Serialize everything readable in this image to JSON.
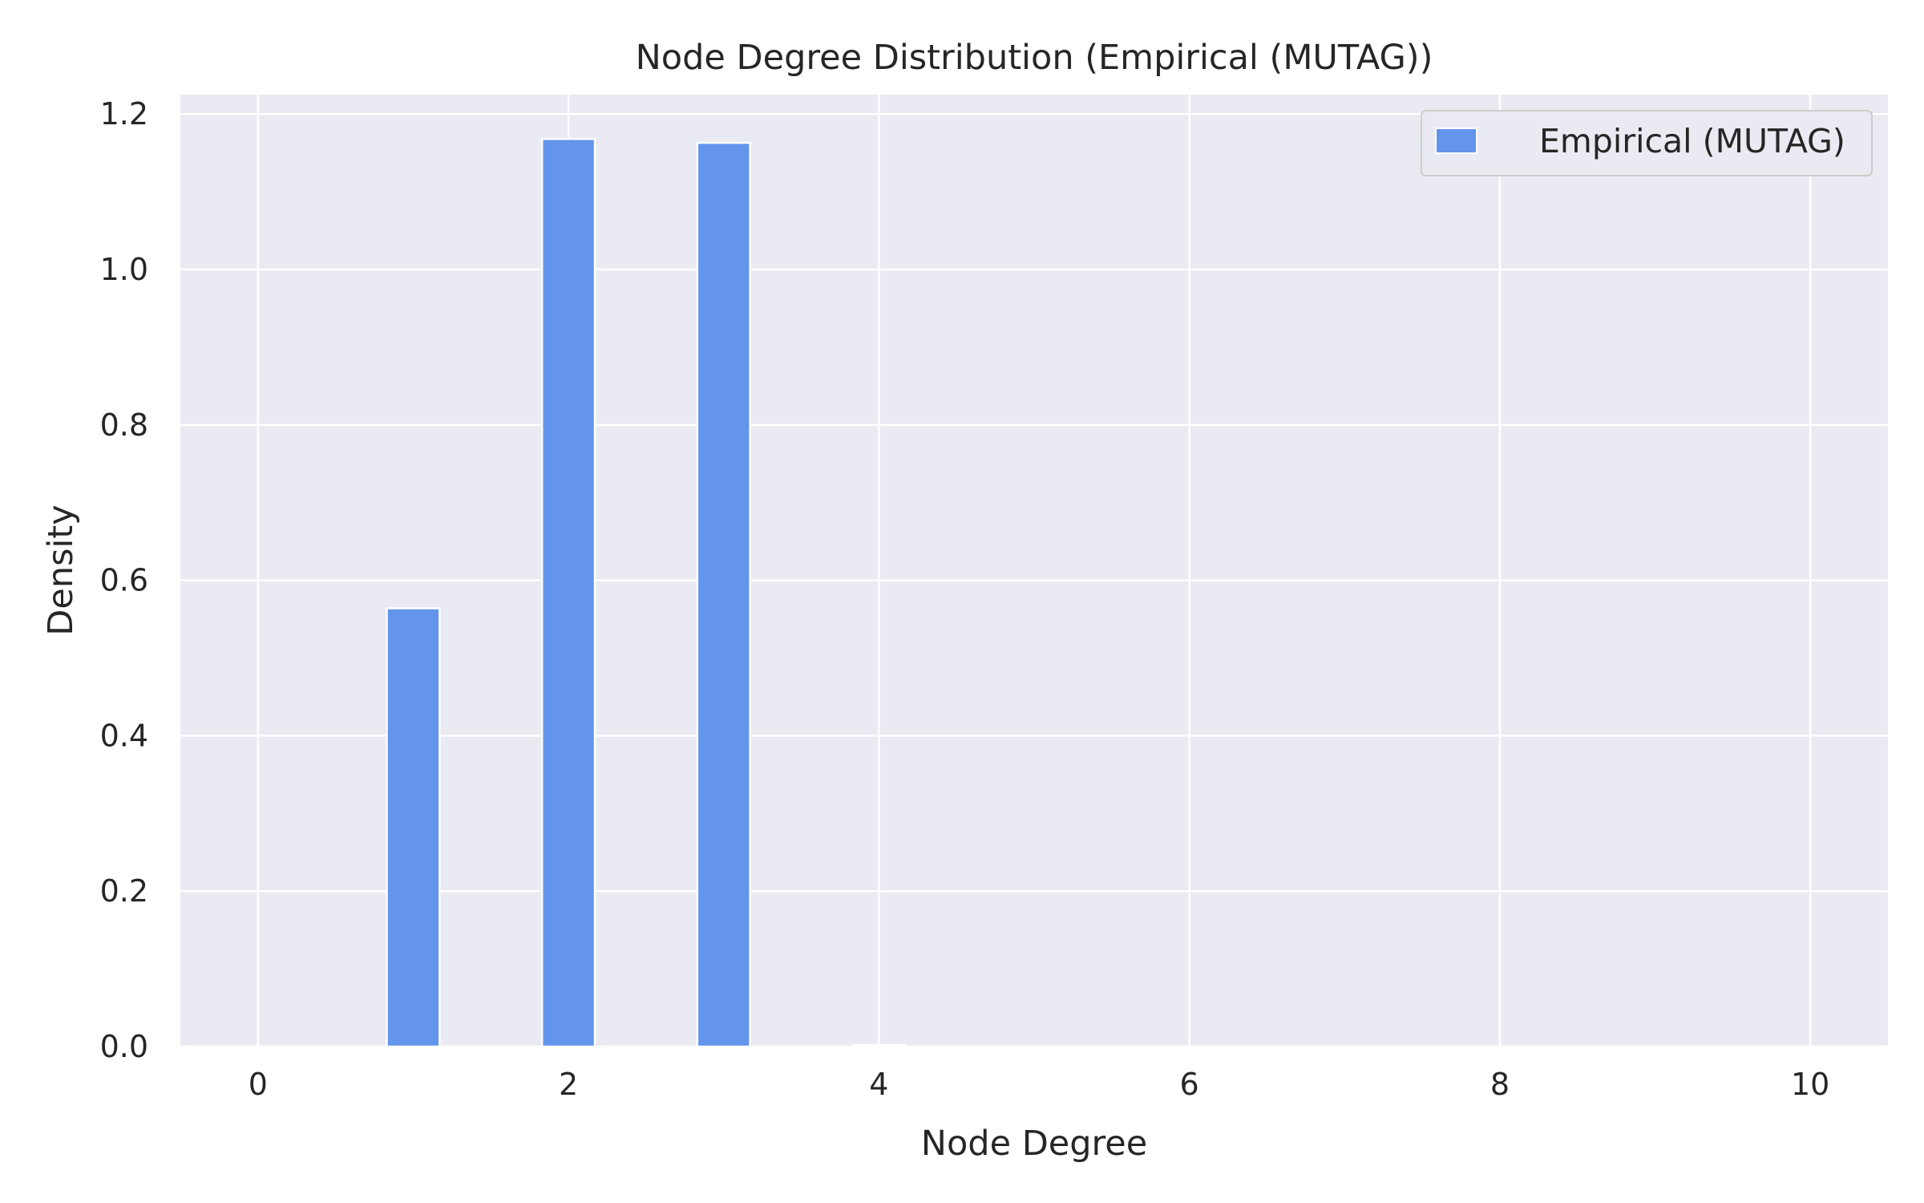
{
  "chart_data": {
    "type": "bar",
    "title": "Node Degree Distribution (Empirical (MUTAG))",
    "xlabel": "Node Degree",
    "ylabel": "Density",
    "xlim": [
      -0.5,
      10.5
    ],
    "ylim": [
      0,
      1.225
    ],
    "xticks": [
      0,
      2,
      4,
      6,
      8,
      10
    ],
    "xtick_labels": [
      "0",
      "2",
      "4",
      "6",
      "8",
      "10"
    ],
    "yticks": [
      0,
      0.2,
      0.4,
      0.6,
      0.8,
      1.0,
      1.2
    ],
    "ytick_labels": [
      "0.0",
      "0.2",
      "0.4",
      "0.6",
      "0.8",
      "1.0",
      "1.2"
    ],
    "grid": true,
    "legend_position": "top-right",
    "bar_width": 0.34,
    "series": [
      {
        "name": "Empirical (MUTAG)",
        "color": "#6495ED",
        "x": [
          1,
          2,
          3,
          4
        ],
        "values": [
          0.564,
          1.168,
          1.163,
          0.002
        ]
      }
    ],
    "colors": {
      "plot_background": "#EAEAF2",
      "grid": "#FFFFFF",
      "text": "#262626"
    }
  }
}
